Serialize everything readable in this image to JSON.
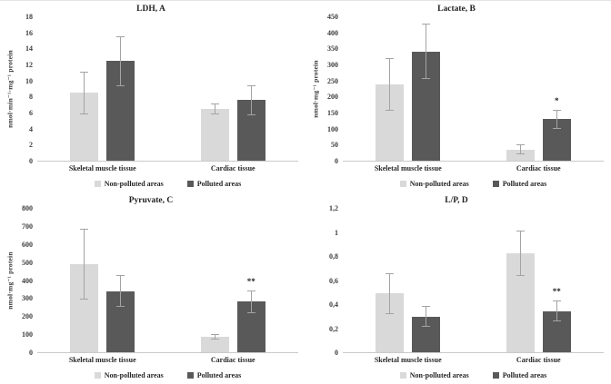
{
  "figure": {
    "description": "Four-panel bar chart figure comparing biochemical markers in skeletal muscle and cardiac tissue from non-polluted vs polluted areas",
    "series_colors": {
      "non_polluted": "#d9d9d9",
      "polluted": "#595959"
    },
    "error_bar_color": "#a3a3a3"
  },
  "chart_data": [
    {
      "type": "bar",
      "panel": "A",
      "title": "LDH, A",
      "ylabel": "nmol·min⁻¹·mg⁻¹ protein",
      "ylim": [
        0,
        18
      ],
      "yticks": [
        {
          "v": 0,
          "label": "0"
        },
        {
          "v": 2,
          "label": "2"
        },
        {
          "v": 4,
          "label": "4"
        },
        {
          "v": 6,
          "label": "6"
        },
        {
          "v": 8,
          "label": "8"
        },
        {
          "v": 10,
          "label": "10"
        },
        {
          "v": 12,
          "label": "12"
        },
        {
          "v": 14,
          "label": "14"
        },
        {
          "v": 16,
          "label": "16"
        },
        {
          "v": 18,
          "label": "18"
        }
      ],
      "categories": [
        "Skeletal muscle tissue",
        "Cardiac tissue"
      ],
      "series": [
        {
          "name": "Non-polluted areas",
          "color": "#d9d9d9",
          "values": [
            8.5,
            6.5
          ],
          "errors": [
            2.7,
            0.7
          ],
          "sig": [
            "",
            ""
          ]
        },
        {
          "name": "Polluted areas",
          "color": "#595959",
          "values": [
            12.5,
            7.6
          ],
          "errors": [
            3.1,
            1.9
          ],
          "sig": [
            "",
            ""
          ]
        }
      ],
      "legend_position": "bottom",
      "grid": false
    },
    {
      "type": "bar",
      "panel": "B",
      "title": "Lactate, B",
      "ylabel": "nmol·mg⁻¹ protein",
      "ylim": [
        0,
        450
      ],
      "yticks": [
        {
          "v": 0,
          "label": "0"
        },
        {
          "v": 50,
          "label": "50"
        },
        {
          "v": 100,
          "label": "100"
        },
        {
          "v": 150,
          "label": "150"
        },
        {
          "v": 200,
          "label": "200"
        },
        {
          "v": 250,
          "label": "250"
        },
        {
          "v": 300,
          "label": "300"
        },
        {
          "v": 350,
          "label": "350"
        },
        {
          "v": 400,
          "label": "400"
        },
        {
          "v": 450,
          "label": "450"
        }
      ],
      "categories": [
        "Skeletal muscle tissue",
        "Cardiac tissue"
      ],
      "series": [
        {
          "name": "Non-polluted areas",
          "color": "#d9d9d9",
          "values": [
            240,
            35
          ],
          "errors": [
            82,
            15
          ],
          "sig": [
            "",
            ""
          ]
        },
        {
          "name": "Polluted areas",
          "color": "#595959",
          "values": [
            343,
            130
          ],
          "errors": [
            88,
            30
          ],
          "sig": [
            "",
            "*"
          ]
        }
      ],
      "legend_position": "bottom",
      "grid": false
    },
    {
      "type": "bar",
      "panel": "C",
      "title": "Pyruvate, C",
      "ylabel": "nmol·mg⁻¹ protein",
      "ylim": [
        0,
        800
      ],
      "yticks": [
        {
          "v": 0,
          "label": "0"
        },
        {
          "v": 100,
          "label": "100"
        },
        {
          "v": 200,
          "label": "200"
        },
        {
          "v": 300,
          "label": "300"
        },
        {
          "v": 400,
          "label": "400"
        },
        {
          "v": 500,
          "label": "500"
        },
        {
          "v": 600,
          "label": "600"
        },
        {
          "v": 700,
          "label": "700"
        },
        {
          "v": 800,
          "label": "800"
        }
      ],
      "categories": [
        "Skeletal muscle tissue",
        "Cardiac tissue"
      ],
      "series": [
        {
          "name": "Non-polluted areas",
          "color": "#d9d9d9",
          "values": [
            490,
            85
          ],
          "errors": [
            198,
            15
          ],
          "sig": [
            "",
            ""
          ]
        },
        {
          "name": "Polluted areas",
          "color": "#595959",
          "values": [
            340,
            283
          ],
          "errors": [
            88,
            63
          ],
          "sig": [
            "",
            "**"
          ]
        }
      ],
      "legend_position": "bottom",
      "grid": false
    },
    {
      "type": "bar",
      "panel": "D",
      "title": "L/P, D",
      "ylabel": "",
      "ylim": [
        0,
        1.2
      ],
      "yticks": [
        {
          "v": 0,
          "label": "0"
        },
        {
          "v": 0.2,
          "label": "0,2"
        },
        {
          "v": 0.4,
          "label": "0,4"
        },
        {
          "v": 0.6,
          "label": "0,6"
        },
        {
          "v": 0.8,
          "label": "0,8"
        },
        {
          "v": 1,
          "label": "1"
        },
        {
          "v": 1.2,
          "label": "1,2"
        }
      ],
      "categories": [
        "Skeletal muscle tissue",
        "Cardiac tissue"
      ],
      "series": [
        {
          "name": "Non-polluted areas",
          "color": "#d9d9d9",
          "values": [
            0.49,
            0.83
          ],
          "errors": [
            0.17,
            0.19
          ],
          "sig": [
            "",
            ""
          ]
        },
        {
          "name": "Polluted areas",
          "color": "#595959",
          "values": [
            0.3,
            0.345
          ],
          "errors": [
            0.09,
            0.09
          ],
          "sig": [
            "",
            "**"
          ]
        }
      ],
      "legend_position": "bottom",
      "grid": false
    }
  ]
}
